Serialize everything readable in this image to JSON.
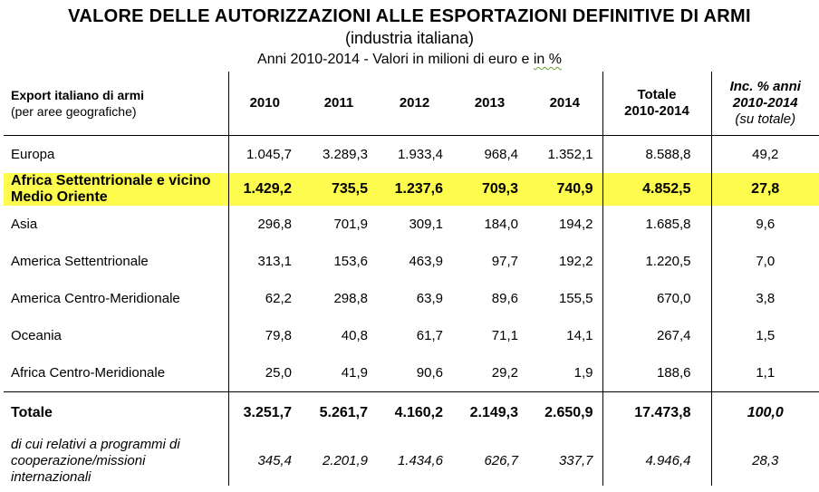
{
  "title": "VALORE DELLE AUTORIZZAZIONI ALLE ESPORTAZIONI DEFINITIVE DI ARMI",
  "subtitle": "(industria italiana)",
  "caption_prefix": "Anni 2010-2014 - Valori in milioni di euro e ",
  "caption_underlined": "in %",
  "header": {
    "label_line1": "Export italiano di armi",
    "label_line2": "(per aree geografiche)",
    "years": [
      "2010",
      "2011",
      "2012",
      "2013",
      "2014"
    ],
    "total_line1": "Totale",
    "total_line2": "2010-2014",
    "inc_line1": "Inc. % anni",
    "inc_line2": "2010-2014",
    "inc_line3": "(su totale)"
  },
  "rows": [
    {
      "label": "Europa",
      "values": [
        "1.045,7",
        "3.289,3",
        "1.933,4",
        "968,4",
        "1.352,1"
      ],
      "total": "8.588,8",
      "pct": "49,2"
    },
    {
      "label": "Africa Settentrionale e vicino Medio Oriente",
      "values": [
        "1.429,2",
        "735,5",
        "1.237,6",
        "709,3",
        "740,9"
      ],
      "total": "4.852,5",
      "pct": "27,8"
    },
    {
      "label": "Asia",
      "values": [
        "296,8",
        "701,9",
        "309,1",
        "184,0",
        "194,2"
      ],
      "total": "1.685,8",
      "pct": "9,6"
    },
    {
      "label": "America Settentrionale",
      "values": [
        "313,1",
        "153,6",
        "463,9",
        "97,7",
        "192,2"
      ],
      "total": "1.220,5",
      "pct": "7,0"
    },
    {
      "label": "America Centro-Meridionale",
      "values": [
        "62,2",
        "298,8",
        "63,9",
        "89,6",
        "155,5"
      ],
      "total": "670,0",
      "pct": "3,8"
    },
    {
      "label": "Oceania",
      "values": [
        "79,8",
        "40,8",
        "61,7",
        "71,1",
        "14,1"
      ],
      "total": "267,4",
      "pct": "1,5"
    },
    {
      "label": "Africa Centro-Meridionale",
      "values": [
        "25,0",
        "41,9",
        "90,6",
        "29,2",
        "1,9"
      ],
      "total": "188,6",
      "pct": "1,1"
    }
  ],
  "total_row": {
    "label": "Totale",
    "values": [
      "3.251,7",
      "5.261,7",
      "4.160,2",
      "2.149,3",
      "2.650,9"
    ],
    "total": "17.473,8",
    "pct": "100,0"
  },
  "coop_row": {
    "label": "di cui relativi a programmi di cooperazione/missioni internazionali",
    "values": [
      "345,4",
      "2.201,9",
      "1.434,6",
      "626,7",
      "337,7"
    ],
    "total": "4.946,4",
    "pct": "28,3"
  },
  "highlight_color": "#fdfb4e"
}
